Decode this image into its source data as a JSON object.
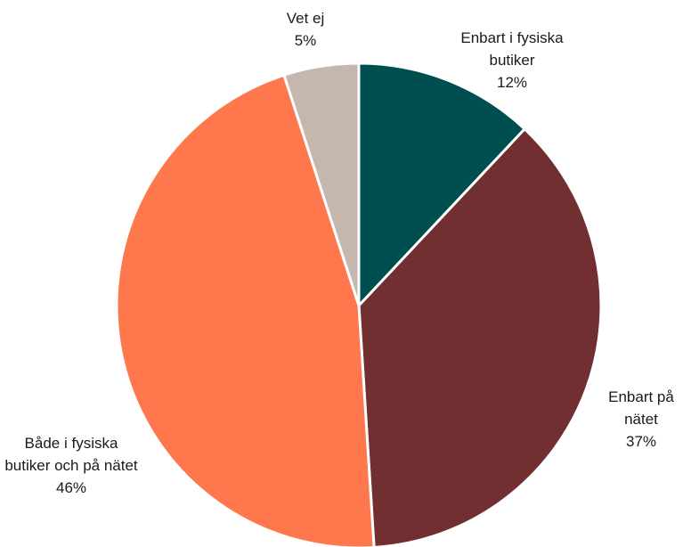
{
  "chart_data": {
    "type": "pie",
    "categories": [
      "Enbart i fysiska butiker",
      "Enbart på nätet",
      "Både i fysiska butiker och på nätet",
      "Vet ej"
    ],
    "values": [
      12,
      37,
      46,
      5
    ],
    "value_labels": [
      "12%",
      "37%",
      "46%",
      "5%"
    ],
    "colors": [
      "#004f50",
      "#722f31",
      "#ff774d",
      "#c5b7ae"
    ]
  }
}
